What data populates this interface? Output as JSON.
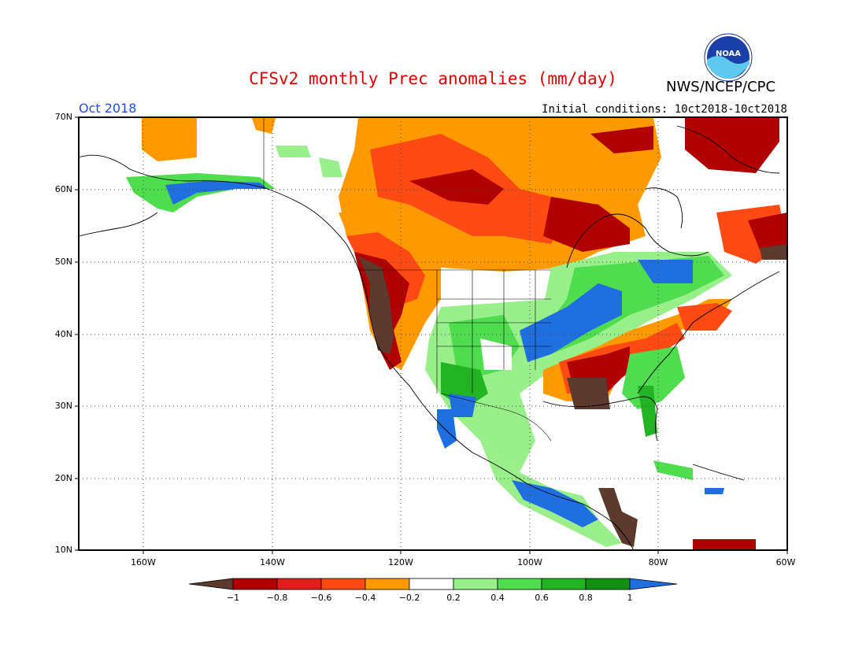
{
  "title": "CFSv2 monthly Prec anomalies (mm/day)",
  "title_color": "#e00000",
  "period": "Oct 2018",
  "period_color": "#1f4fe0",
  "initial_conditions": "Initial conditions: 10ct2018-10ct2018",
  "agency": "NWS/NCEP/CPC",
  "logo": {
    "text": "NOAA",
    "icon": "noaa-logo"
  },
  "map": {
    "lon_range": [
      -170,
      -60
    ],
    "lat_range": [
      10,
      70
    ],
    "lat_ticks": [
      "70N",
      "60N",
      "50N",
      "40N",
      "30N",
      "20N",
      "10N"
    ],
    "lon_ticks": [
      "160W",
      "140W",
      "120W",
      "100W",
      "80W",
      "60W"
    ],
    "grid": "dotted"
  },
  "colorbar": {
    "labels": [
      "−1",
      "−0.8",
      "−0.6",
      "−0.4",
      "−0.2",
      "0.2",
      "0.4",
      "0.6",
      "0.8",
      "1"
    ],
    "colors": [
      "#5c3a2e",
      "#b00000",
      "#e01e1e",
      "#ff4a14",
      "#ff9900",
      "#ffffff",
      "#99f08a",
      "#4fdc4f",
      "#23b423",
      "#139013",
      "#1f6fe0"
    ]
  },
  "regions": [
    {
      "name": "Pacific Northwest coast",
      "value": -1.0
    },
    {
      "name": "California coast",
      "value": -1.0
    },
    {
      "name": "Northern Great Basin",
      "value": -0.6
    },
    {
      "name": "Western Canada interior",
      "value": -0.6
    },
    {
      "name": "Hudson Bay region",
      "value": -0.8
    },
    {
      "name": "Quebec and Labrador",
      "value": -0.8
    },
    {
      "name": "Southern Plains",
      "value": 0.6
    },
    {
      "name": "Central Plains to Great Lakes",
      "value": 1.0
    },
    {
      "name": "Lower Mississippi Valley",
      "value": -1.0
    },
    {
      "name": "Tennessee Valley",
      "value": -0.6
    },
    {
      "name": "Mid-Atlantic",
      "value": -0.4
    },
    {
      "name": "Southeast coast",
      "value": 0.6
    },
    {
      "name": "Southern Mexico",
      "value": 1.0
    },
    {
      "name": "Central America",
      "value": -1.0
    },
    {
      "name": "Southern Alaska",
      "value": 1.0
    },
    {
      "name": "Ontario and Quebec south",
      "value": 1.0
    }
  ]
}
